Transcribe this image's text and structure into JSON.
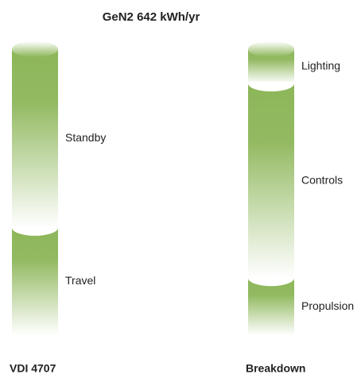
{
  "chart_data": {
    "type": "stacked_cylinder",
    "title": "GeN2 642 kWh/yr",
    "color": "#8db659",
    "bars": [
      {
        "label": "VDI 4707",
        "segments": [
          {
            "name": "Standby",
            "value": 401
          },
          {
            "name": "Travel",
            "value": 241
          }
        ]
      },
      {
        "label": "Breakdown",
        "segments": [
          {
            "name": "Lighting",
            "value": 77
          },
          {
            "name": "Controls",
            "value": 437
          },
          {
            "name": "Propulsion",
            "value": 128
          }
        ]
      }
    ]
  }
}
